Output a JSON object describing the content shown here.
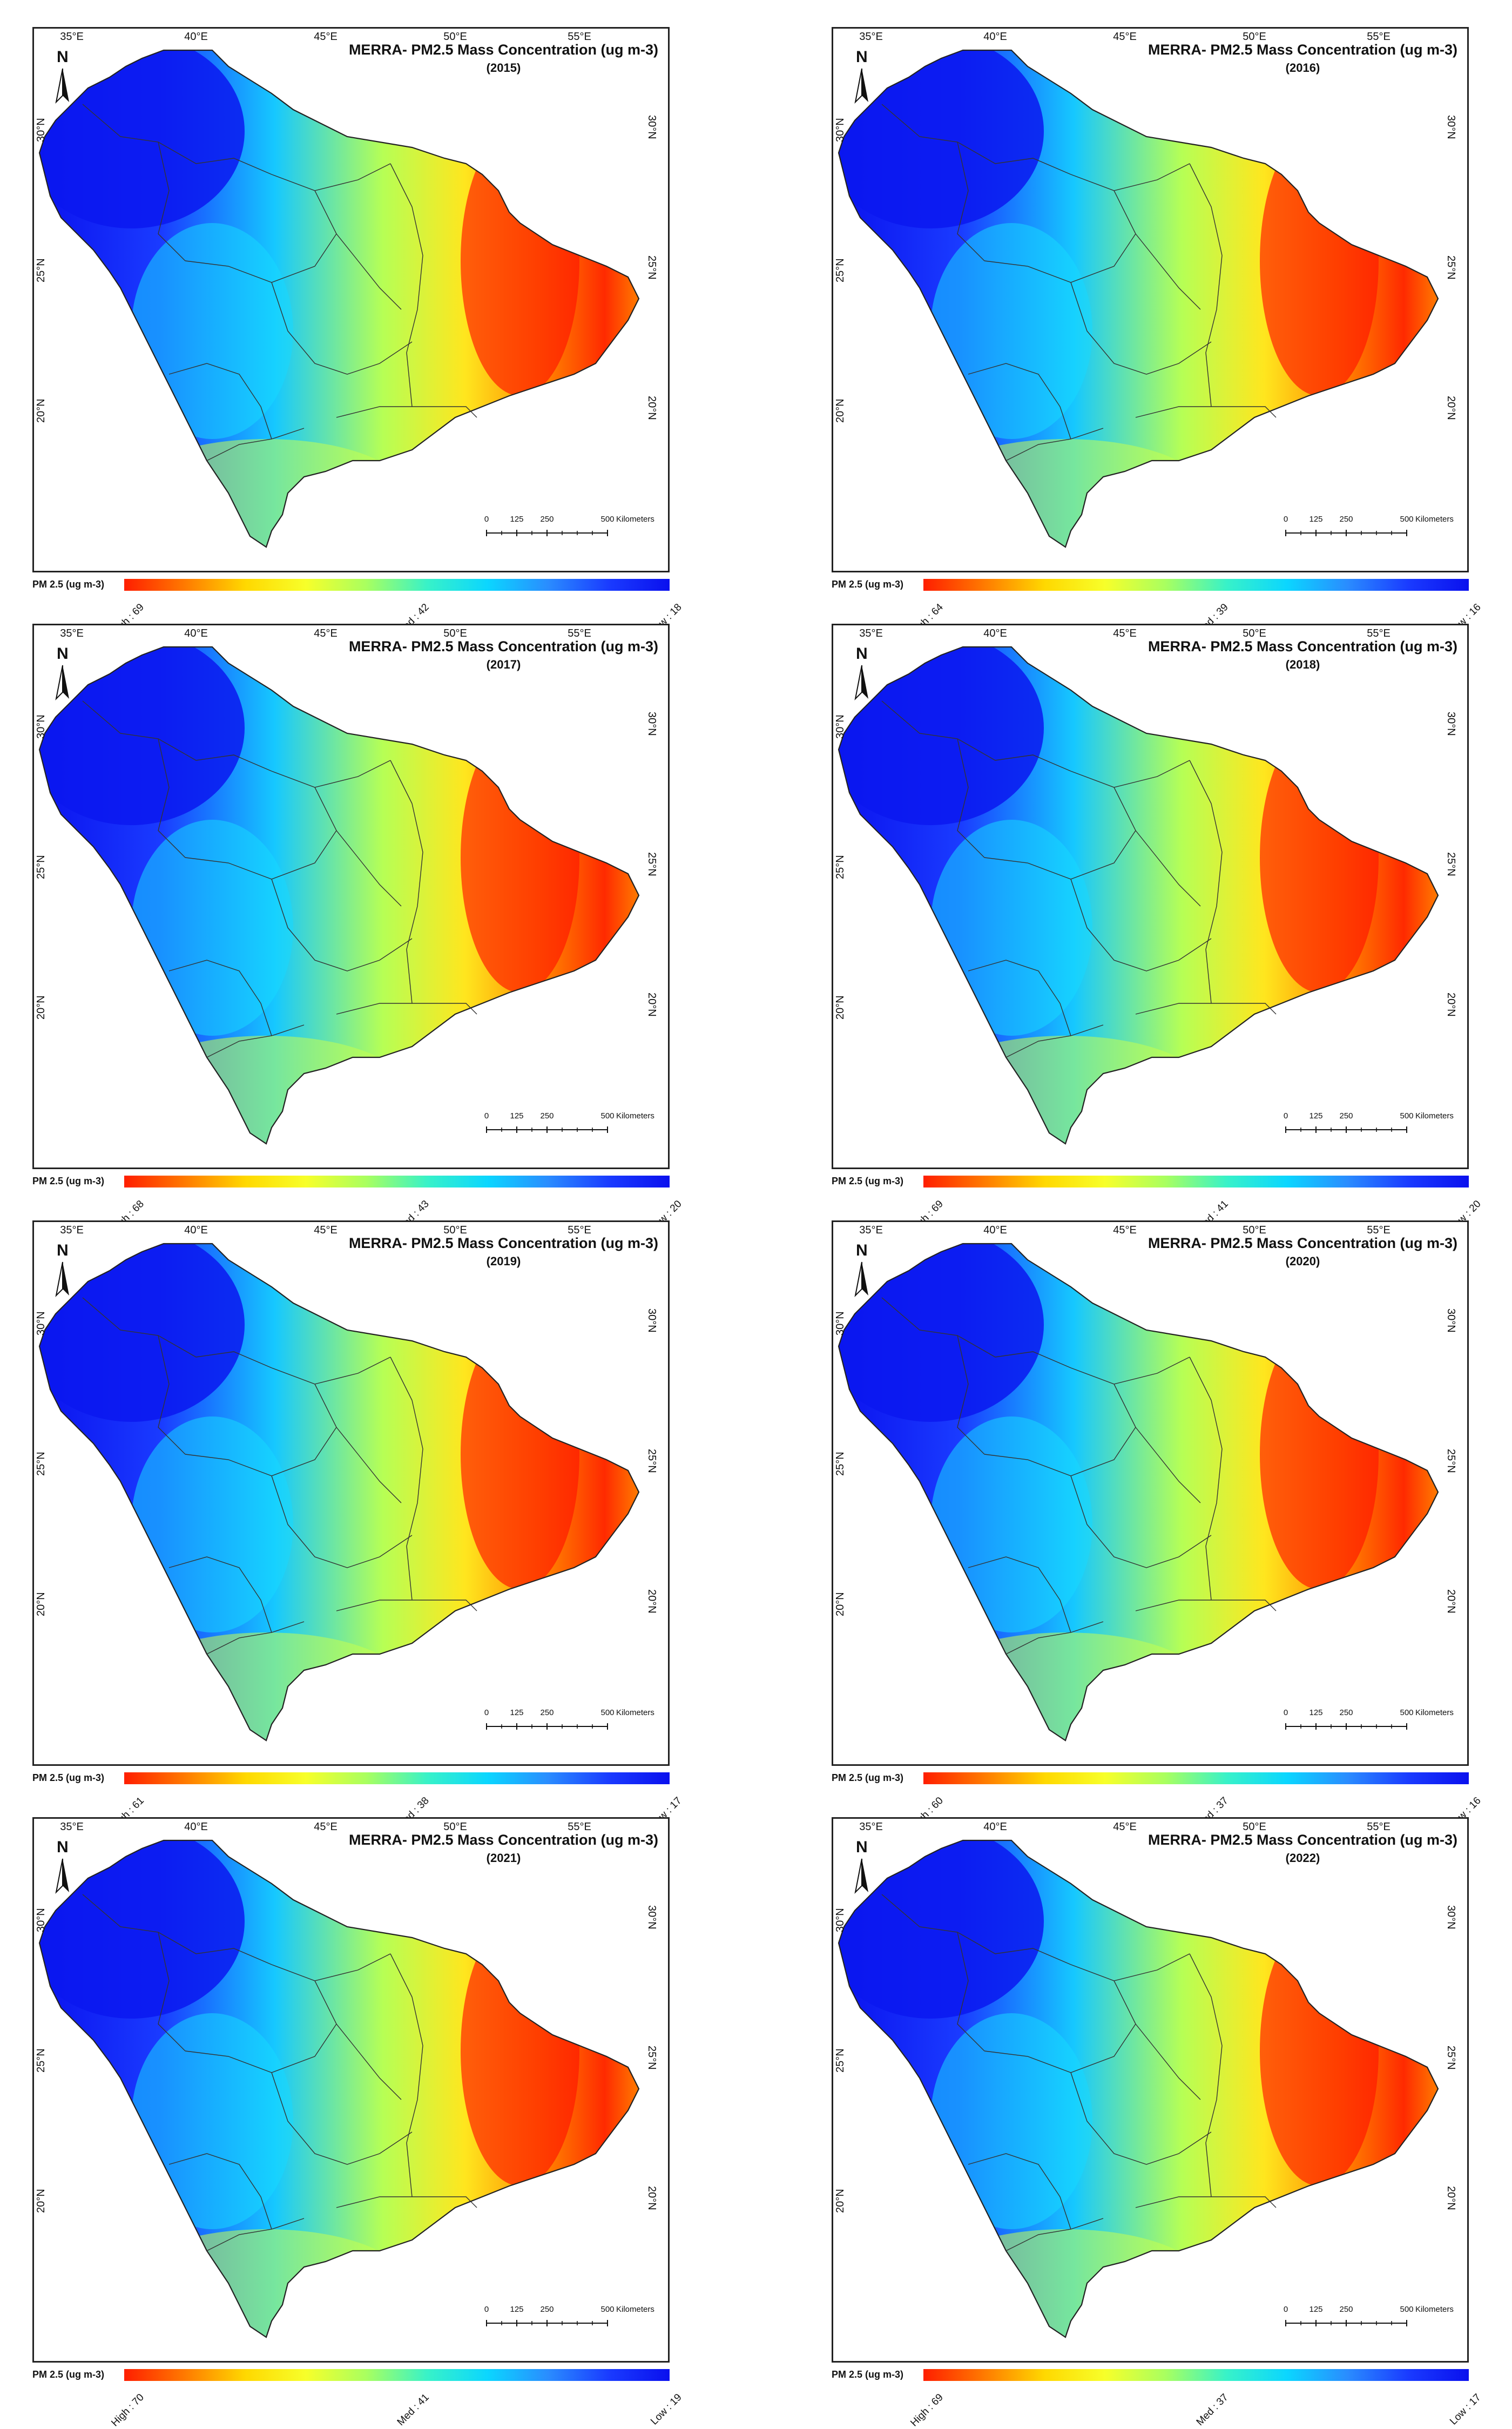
{
  "title": "MERRA- PM2.5 Mass Concentration (ug m-3)",
  "lon_ticks": [
    "35°E",
    "40°E",
    "45°E",
    "50°E",
    "55°E"
  ],
  "lat_ticks": [
    "30°N",
    "25°N",
    "20°N"
  ],
  "north_label": "N",
  "scale": {
    "ticks": [
      "0",
      "125",
      "250",
      "500"
    ],
    "unit": "Kilometers"
  },
  "legend": {
    "title": "PM 2.5 (ug m-3)",
    "high_prefix": "High :",
    "med_prefix": "Med :",
    "low_prefix": "Low :"
  },
  "colors": {
    "high": "#ff1e00",
    "mid": "#f7ff2a",
    "low": "#0a10ee",
    "border": "#222222"
  },
  "panels": [
    {
      "year": "(2015)",
      "high": "69",
      "med": "42",
      "low": "18"
    },
    {
      "year": "(2016)",
      "high": "64",
      "med": "39",
      "low": "16"
    },
    {
      "year": "(2017)",
      "high": "68",
      "med": "43",
      "low": "20"
    },
    {
      "year": "(2018)",
      "high": "69",
      "med": "41",
      "low": "20"
    },
    {
      "year": "(2019)",
      "high": "61",
      "med": "38",
      "low": "17"
    },
    {
      "year": "(2020)",
      "high": "60",
      "med": "37",
      "low": "16"
    },
    {
      "year": "(2021)",
      "high": "70",
      "med": "41",
      "low": "19"
    },
    {
      "year": "(2022)",
      "high": "69",
      "med": "37",
      "low": "17"
    }
  ]
}
